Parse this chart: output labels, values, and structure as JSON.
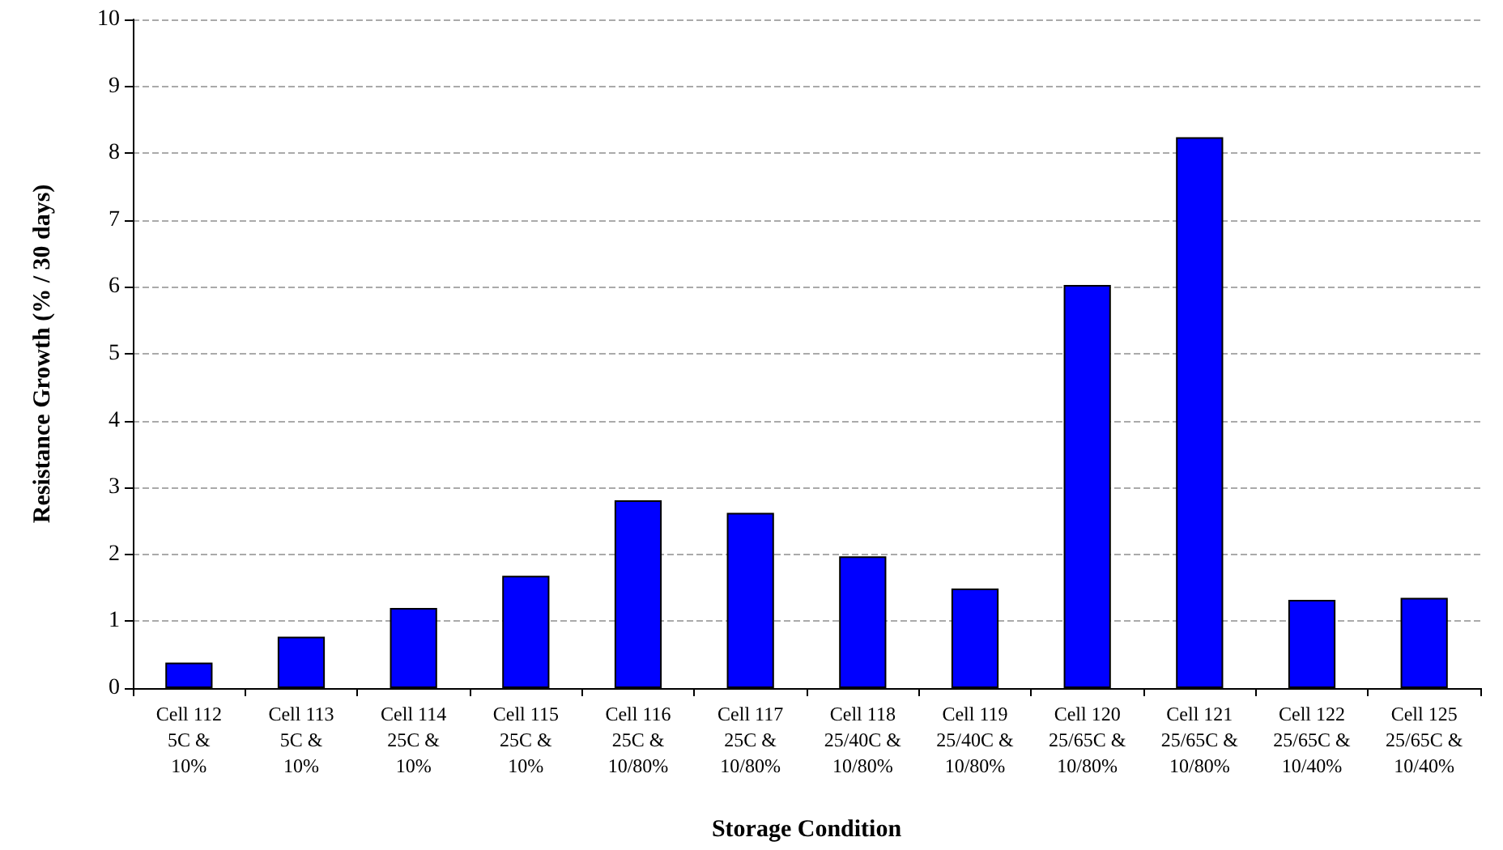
{
  "chart_data": {
    "type": "bar",
    "xlabel": "Storage Condition",
    "ylabel": "Resistance Growth (% / 30 days)",
    "categories": [
      "Cell 112\n5C &\n10%",
      "Cell 113\n5C &\n10%",
      "Cell 114\n25C &\n10%",
      "Cell 115\n25C &\n10%",
      "Cell 116\n25C &\n10/80%",
      "Cell 117\n25C &\n10/80%",
      "Cell 118\n25/40C &\n10/80%",
      "Cell 119\n25/40C &\n10/80%",
      "Cell 120\n25/65C &\n10/80%",
      "Cell 121\n25/65C &\n10/80%",
      "Cell 122\n25/65C &\n10/40%",
      "Cell 125\n25/65C &\n10/40%"
    ],
    "values": [
      0.38,
      0.77,
      1.2,
      1.68,
      2.81,
      2.62,
      1.97,
      1.49,
      6.03,
      8.24,
      1.32,
      1.35
    ],
    "color": "#0000ff",
    "ylim": [
      0,
      10
    ],
    "yticks": [
      0,
      1,
      2,
      3,
      4,
      5,
      6,
      7,
      8,
      9,
      10
    ],
    "grid": "y"
  }
}
